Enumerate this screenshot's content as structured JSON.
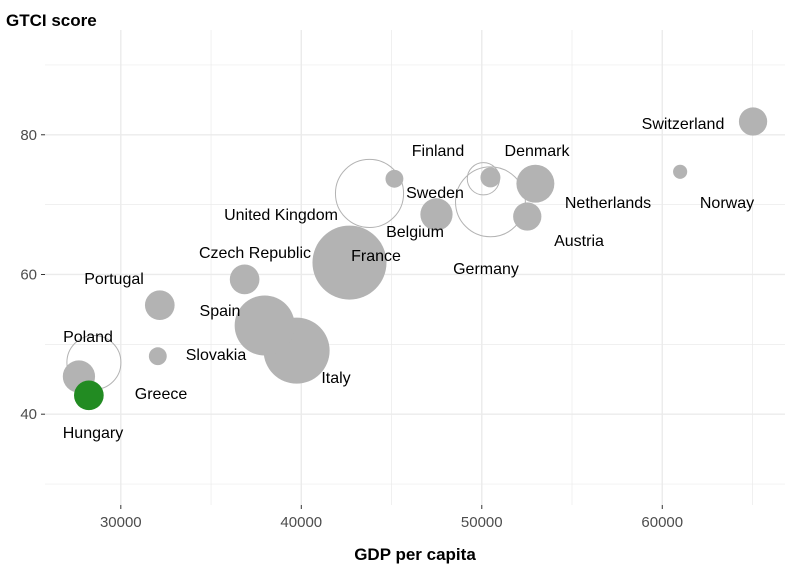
{
  "chart_data": {
    "type": "scatter",
    "title": "GTCI score",
    "xlabel": "GDP per capita",
    "ylabel": "GTCI score",
    "xlim": [
      25800,
      66800
    ],
    "ylim": [
      27,
      95
    ],
    "xticks": [
      30000,
      40000,
      50000,
      60000
    ],
    "xtick_labels": [
      "30000",
      "40000",
      "50000",
      "60000"
    ],
    "yticks": [
      40,
      60,
      80
    ],
    "ytick_labels": [
      "40",
      "60",
      "80"
    ],
    "grid": true,
    "colors": {
      "default": "#b3b3b3",
      "highlight": "#228b22",
      "hollow_stroke": "#b3b3b3"
    },
    "points": [
      {
        "name": "Switzerland",
        "x": 65030,
        "y": 81.9,
        "size": 20,
        "style": "filled"
      },
      {
        "name": "Norway",
        "x": 60990,
        "y": 74.7,
        "size": 5,
        "style": "filled"
      },
      {
        "name": "Denmark",
        "x": 50480,
        "y": 73.9,
        "size": 10,
        "style": "filled"
      },
      {
        "name": "Sweden",
        "x": 50090,
        "y": 73.7,
        "size": 26,
        "style": "hollow"
      },
      {
        "name": "Netherlands",
        "x": 52970,
        "y": 73.0,
        "size": 36,
        "style": "filled"
      },
      {
        "name": "Austria",
        "x": 52520,
        "y": 68.3,
        "size": 20,
        "style": "filled"
      },
      {
        "name": "Finland",
        "x": 45160,
        "y": 73.7,
        "size": 8,
        "style": "filled"
      },
      {
        "name": "Belgium",
        "x": 47490,
        "y": 68.6,
        "size": 26,
        "style": "filled"
      },
      {
        "name": "United Kingdom",
        "x": 43780,
        "y": 71.6,
        "size": 116,
        "style": "hollow"
      },
      {
        "name": "Germany",
        "x": 50480,
        "y": 70.4,
        "size": 122,
        "style": "hollow"
      },
      {
        "name": "France",
        "x": 42670,
        "y": 61.7,
        "size": 137,
        "style": "filled"
      },
      {
        "name": "Czech Republic",
        "x": 36860,
        "y": 59.3,
        "size": 22,
        "style": "filled"
      },
      {
        "name": "Portugal",
        "x": 32160,
        "y": 55.6,
        "size": 22,
        "style": "filled"
      },
      {
        "name": "Spain",
        "x": 37970,
        "y": 52.7,
        "size": 90,
        "style": "filled"
      },
      {
        "name": "Italy",
        "x": 39740,
        "y": 49.1,
        "size": 109,
        "style": "filled"
      },
      {
        "name": "Slovakia",
        "x": 32050,
        "y": 48.3,
        "size": 8,
        "style": "filled"
      },
      {
        "name": "Poland",
        "x": 28510,
        "y": 47.4,
        "size": 73,
        "style": "hollow"
      },
      {
        "name": "Hungary",
        "x": 27680,
        "y": 45.4,
        "size": 26,
        "style": "filled"
      },
      {
        "name": "Greece",
        "x": 28230,
        "y": 42.7,
        "size": 22,
        "style": "highlight"
      }
    ]
  }
}
